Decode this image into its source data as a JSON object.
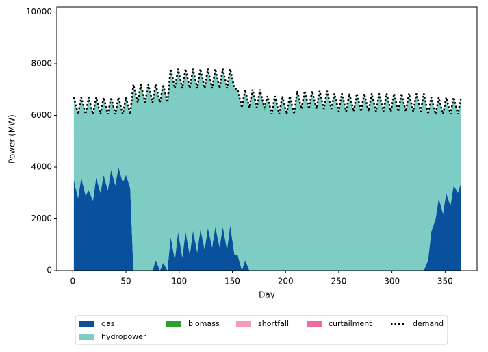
{
  "chart_data": {
    "type": "area",
    "xlabel": "Day",
    "ylabel": "Power (MW)",
    "xlim": [
      -15,
      380
    ],
    "xticks": [
      0,
      50,
      100,
      150,
      200,
      250,
      300,
      350
    ],
    "ylim": [
      0,
      10200
    ],
    "yticks": [
      0,
      2000,
      4000,
      6000,
      8000,
      10000
    ],
    "legend": "bottom",
    "x": [
      1,
      5,
      8,
      12,
      15,
      19,
      22,
      26,
      29,
      33,
      36,
      40,
      43,
      47,
      50,
      54,
      57,
      61,
      64,
      68,
      71,
      75,
      78,
      82,
      85,
      89,
      92,
      96,
      99,
      103,
      106,
      110,
      113,
      117,
      120,
      124,
      127,
      131,
      134,
      138,
      141,
      145,
      148,
      152,
      155,
      159,
      162,
      166,
      169,
      173,
      176,
      180,
      183,
      187,
      190,
      194,
      197,
      201,
      204,
      208,
      211,
      215,
      218,
      222,
      225,
      229,
      232,
      236,
      239,
      243,
      246,
      250,
      253,
      257,
      260,
      264,
      267,
      271,
      274,
      278,
      281,
      285,
      288,
      292,
      295,
      299,
      302,
      306,
      309,
      313,
      316,
      320,
      323,
      327,
      330,
      334,
      337,
      341,
      344,
      348,
      351,
      355,
      358,
      362,
      365
    ],
    "series": [
      {
        "name": "gas",
        "color": "#0a519d",
        "values": [
          3500,
          2800,
          3600,
          2900,
          3100,
          2700,
          3600,
          3000,
          3700,
          3100,
          3900,
          3300,
          4000,
          3400,
          3700,
          3200,
          0,
          0,
          0,
          0,
          0,
          0,
          400,
          0,
          300,
          0,
          1300,
          400,
          1500,
          500,
          1500,
          600,
          1550,
          700,
          1600,
          800,
          1650,
          900,
          1700,
          900,
          1700,
          800,
          1750,
          600,
          600,
          0,
          400,
          0,
          0,
          0,
          0,
          0,
          0,
          0,
          0,
          0,
          0,
          0,
          0,
          0,
          0,
          0,
          0,
          0,
          0,
          0,
          0,
          0,
          0,
          0,
          0,
          0,
          0,
          0,
          0,
          0,
          0,
          0,
          0,
          0,
          0,
          0,
          0,
          0,
          0,
          0,
          0,
          0,
          0,
          0,
          0,
          0,
          0,
          0,
          0,
          400,
          1500,
          2000,
          2800,
          2200,
          3000,
          2500,
          3300,
          3000,
          3400
        ]
      },
      {
        "name": "hydropower",
        "color": "#7ecdc4",
        "values": [
          3200,
          3250,
          3100,
          3150,
          3600,
          3350,
          3100,
          3050,
          3000,
          2950,
          2800,
          2750,
          2700,
          2650,
          3000,
          2850,
          7200,
          6500,
          7050,
          6500,
          7200,
          6500,
          6800,
          6500,
          6900,
          6500,
          6500,
          6650,
          6300,
          6550,
          6300,
          6450,
          6250,
          6350,
          6200,
          6250,
          6150,
          6150,
          6100,
          6150,
          6100,
          6250,
          6050,
          6450,
          6400,
          6300,
          6600,
          6300,
          7000,
          6300,
          7000,
          6150,
          6750,
          6050,
          6750,
          6050,
          6750,
          6050,
          6750,
          6050,
          6950,
          6250,
          6950,
          6250,
          6950,
          6250,
          6950,
          6250,
          6950,
          6250,
          6850,
          6150,
          6850,
          6150,
          6850,
          6150,
          6850,
          6150,
          6850,
          6150,
          6850,
          6150,
          6850,
          6150,
          6850,
          6150,
          6850,
          6150,
          6850,
          6150,
          6850,
          6150,
          6850,
          6150,
          6850,
          5650,
          5200,
          4050,
          3900,
          3850,
          3700,
          3550,
          3400,
          3050,
          3300
        ]
      },
      {
        "name": "biomass",
        "color": "#2ca02c",
        "values": [
          0,
          0,
          0,
          0,
          0,
          0,
          0,
          0,
          0,
          0,
          0,
          0,
          0,
          0,
          0,
          0,
          0,
          0,
          150,
          0,
          0,
          0,
          0,
          0,
          0,
          0,
          0,
          0,
          0,
          0,
          0,
          0,
          0,
          0,
          0,
          0,
          0,
          0,
          0,
          0,
          0,
          0,
          0,
          0,
          0,
          0,
          0,
          0,
          0,
          0,
          0,
          150,
          0,
          0,
          0,
          0,
          0,
          0,
          0,
          0,
          0,
          0,
          0,
          0,
          0,
          0,
          0,
          0,
          0,
          0,
          0,
          0,
          0,
          0,
          0,
          0,
          0,
          0,
          0,
          0,
          0,
          0,
          0,
          0,
          0,
          0,
          0,
          0,
          0,
          0,
          0,
          0,
          0,
          0,
          0,
          0,
          0,
          0,
          0,
          0,
          0,
          0,
          0,
          0,
          0
        ]
      },
      {
        "name": "shortfall",
        "color": "#f79cb8",
        "values": [
          0,
          0,
          0,
          0,
          0,
          0,
          0,
          0,
          0,
          0,
          0,
          0,
          0,
          0,
          0,
          0,
          0,
          0,
          0,
          0,
          0,
          0,
          0,
          0,
          0,
          0,
          0,
          0,
          0,
          0,
          0,
          0,
          0,
          0,
          0,
          0,
          0,
          0,
          0,
          0,
          0,
          0,
          0,
          0,
          0,
          0,
          0,
          0,
          0,
          0,
          0,
          0,
          0,
          0,
          0,
          0,
          0,
          0,
          0,
          0,
          0,
          0,
          0,
          0,
          0,
          0,
          0,
          0,
          0,
          0,
          0,
          0,
          0,
          0,
          0,
          0,
          0,
          0,
          0,
          0,
          0,
          0,
          0,
          0,
          0,
          0,
          0,
          0,
          0,
          0,
          0,
          0,
          0,
          0,
          0,
          0,
          0,
          0,
          0,
          0,
          0,
          0,
          0,
          0,
          0
        ]
      },
      {
        "name": "curtailment",
        "color": "#f06aa4",
        "values": [
          0,
          0,
          0,
          0,
          0,
          0,
          0,
          0,
          0,
          0,
          0,
          0,
          0,
          0,
          0,
          0,
          0,
          0,
          0,
          0,
          0,
          0,
          0,
          0,
          0,
          0,
          0,
          0,
          0,
          0,
          0,
          0,
          0,
          0,
          0,
          0,
          0,
          0,
          0,
          0,
          0,
          0,
          0,
          0,
          0,
          0,
          0,
          0,
          0,
          0,
          0,
          0,
          0,
          0,
          0,
          0,
          0,
          0,
          0,
          0,
          0,
          0,
          0,
          0,
          0,
          0,
          0,
          0,
          0,
          0,
          0,
          0,
          0,
          0,
          0,
          0,
          0,
          0,
          0,
          0,
          0,
          0,
          0,
          0,
          0,
          0,
          0,
          0,
          0,
          0,
          0,
          0,
          0,
          0,
          0,
          0,
          0,
          0,
          0,
          0,
          0,
          0,
          0,
          0,
          0
        ]
      },
      {
        "name": "demand",
        "color": "#000000",
        "style": "dotted",
        "values": [
          6700,
          6050,
          6700,
          6050,
          6700,
          6050,
          6700,
          6050,
          6700,
          6050,
          6700,
          6050,
          6700,
          6050,
          6700,
          6050,
          7200,
          6500,
          7200,
          6500,
          7200,
          6500,
          7200,
          6500,
          7200,
          6500,
          7800,
          7050,
          7800,
          7050,
          7800,
          7050,
          7800,
          7050,
          7800,
          7050,
          7800,
          7050,
          7800,
          7050,
          7800,
          7050,
          7800,
          7050,
          7000,
          6300,
          7000,
          6300,
          7000,
          6300,
          7000,
          6300,
          6750,
          6050,
          6750,
          6050,
          6750,
          6050,
          6750,
          6050,
          6950,
          6250,
          6950,
          6250,
          6950,
          6250,
          6950,
          6250,
          6950,
          6250,
          6850,
          6150,
          6850,
          6150,
          6850,
          6150,
          6850,
          6150,
          6850,
          6150,
          6850,
          6150,
          6850,
          6150,
          6850,
          6150,
          6850,
          6150,
          6850,
          6150,
          6850,
          6150,
          6850,
          6150,
          6850,
          6050,
          6700,
          6050,
          6700,
          6050,
          6700,
          6050,
          6700,
          6050,
          6700
        ]
      }
    ]
  }
}
